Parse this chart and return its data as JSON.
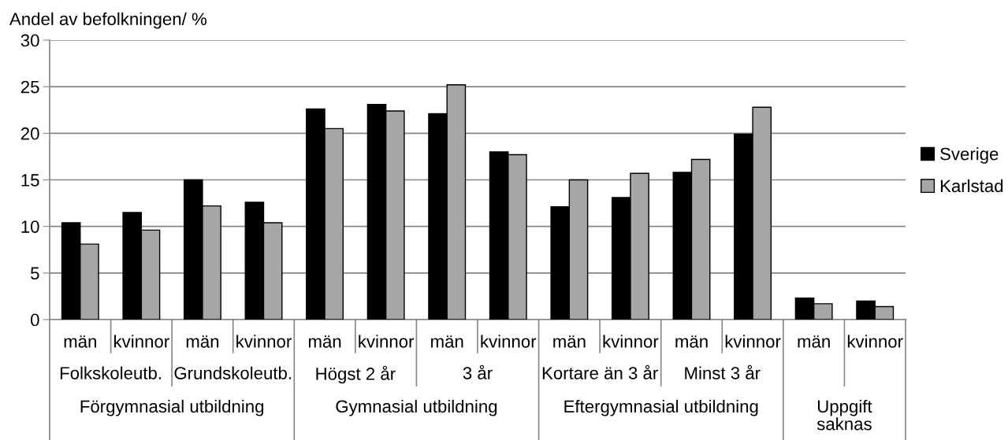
{
  "chart_data": {
    "type": "bar",
    "ylabel": "Andel av befolkningen/ %",
    "categories": [
      "män",
      "kvinnor",
      "män",
      "kvinnor",
      "män",
      "kvinnor",
      "män",
      "kvinnor",
      "män",
      "kvinnor",
      "män",
      "kvinnor",
      "män",
      "kvinnor"
    ],
    "series": [
      {
        "name": "Sverige",
        "color": "#000000",
        "values": [
          10.4,
          11.5,
          15.0,
          12.6,
          22.6,
          23.1,
          22.1,
          18.0,
          12.1,
          13.1,
          15.8,
          19.9,
          2.3,
          2.0
        ]
      },
      {
        "name": "Karlstad",
        "color": "#a6a6a6",
        "values": [
          8.1,
          9.6,
          12.2,
          10.4,
          20.5,
          22.4,
          25.2,
          17.7,
          15.0,
          15.7,
          17.2,
          22.8,
          1.7,
          1.4
        ]
      }
    ],
    "ylim": [
      0,
      30
    ],
    "yticks": [
      0,
      5,
      10,
      15,
      20,
      25,
      30
    ],
    "grid": "y",
    "legend": "right",
    "annotations": [
      "Folkskoleutb.",
      "Grundskoleutb.",
      "Högst 2 år",
      "3 år",
      "Kortare än 3 år",
      "Minst 3 år",
      "Förgymnasial utbildning",
      "Gymnasial utbildning",
      "Eftergymnasial utbildning",
      "Uppgift\nsaknas"
    ]
  }
}
